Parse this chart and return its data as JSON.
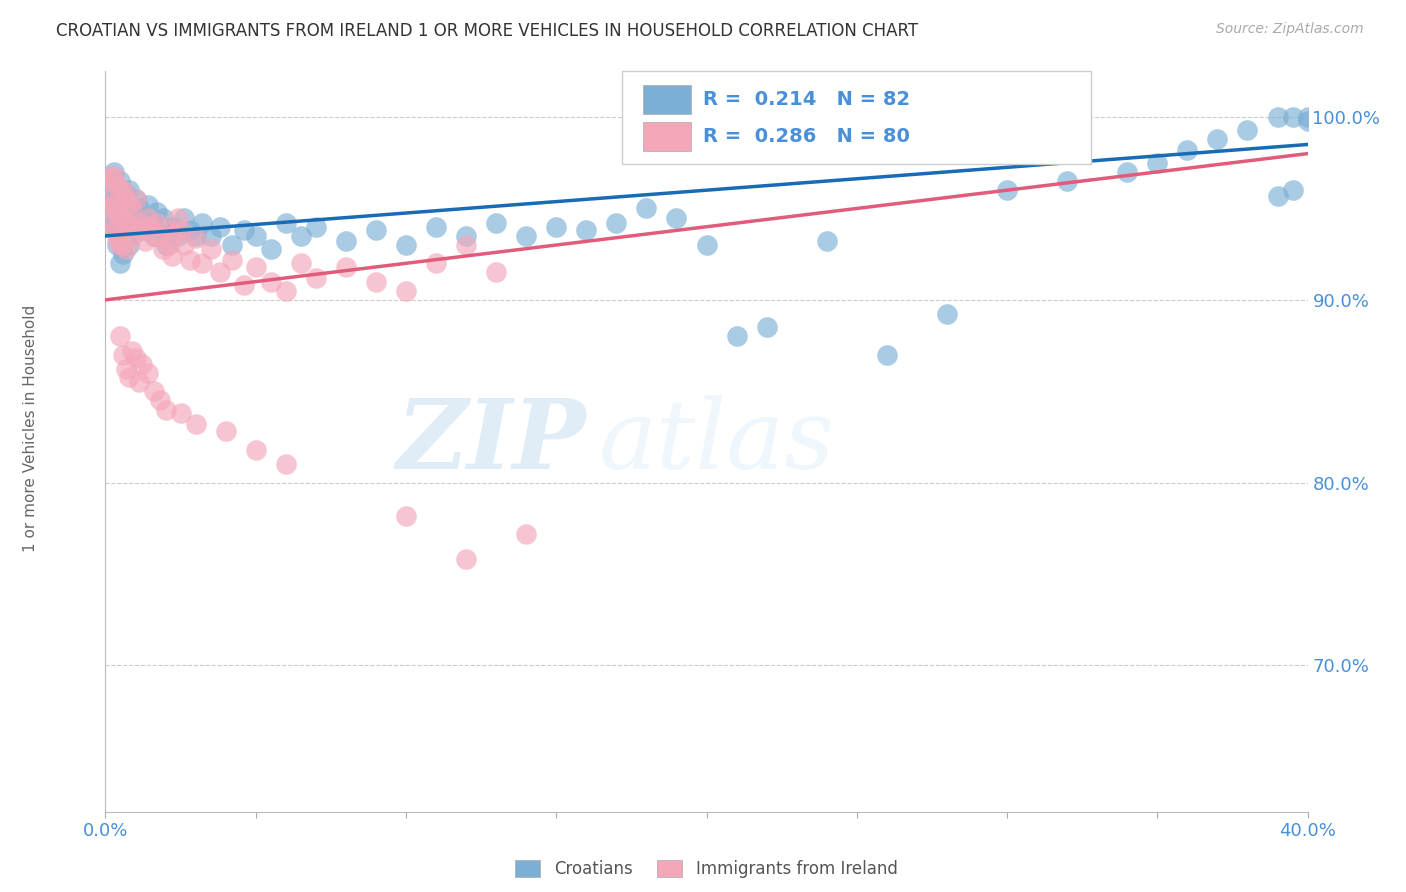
{
  "title": "CROATIAN VS IMMIGRANTS FROM IRELAND 1 OR MORE VEHICLES IN HOUSEHOLD CORRELATION CHART",
  "source": "Source: ZipAtlas.com",
  "ylabel": "1 or more Vehicles in Household",
  "legend_blue_label": "Croatians",
  "legend_pink_label": "Immigrants from Ireland",
  "R_blue": 0.214,
  "N_blue": 82,
  "R_pink": 0.286,
  "N_pink": 80,
  "blue_color": "#7bafd4",
  "pink_color": "#f4a7b9",
  "trendline_blue": "#1a6bb5",
  "trendline_pink": "#e05c7a",
  "background": "#ffffff",
  "xmin": 0.0,
  "xmax": 0.4,
  "ymin": 0.62,
  "ymax": 1.025,
  "ytick_vals": [
    0.7,
    0.8,
    0.9,
    1.0
  ],
  "ytick_labels": [
    "70.0%",
    "80.0%",
    "90.0%",
    "100.0%"
  ],
  "blue_x": [
    0.001,
    0.001,
    0.002,
    0.002,
    0.003,
    0.003,
    0.003,
    0.004,
    0.004,
    0.004,
    0.005,
    0.005,
    0.005,
    0.005,
    0.006,
    0.006,
    0.006,
    0.007,
    0.007,
    0.008,
    0.008,
    0.008,
    0.009,
    0.009,
    0.01,
    0.01,
    0.011,
    0.012,
    0.013,
    0.014,
    0.015,
    0.016,
    0.017,
    0.018,
    0.019,
    0.02,
    0.022,
    0.024,
    0.026,
    0.028,
    0.03,
    0.032,
    0.035,
    0.038,
    0.042,
    0.046,
    0.05,
    0.055,
    0.06,
    0.065,
    0.07,
    0.08,
    0.09,
    0.1,
    0.11,
    0.12,
    0.13,
    0.14,
    0.15,
    0.16,
    0.17,
    0.18,
    0.19,
    0.2,
    0.21,
    0.22,
    0.24,
    0.26,
    0.28,
    0.3,
    0.32,
    0.34,
    0.35,
    0.36,
    0.37,
    0.38,
    0.39,
    0.395,
    0.395,
    0.4,
    0.39,
    0.4
  ],
  "blue_y": [
    0.955,
    0.94,
    0.965,
    0.95,
    0.97,
    0.955,
    0.94,
    0.96,
    0.945,
    0.93,
    0.965,
    0.95,
    0.935,
    0.92,
    0.955,
    0.94,
    0.925,
    0.958,
    0.942,
    0.96,
    0.945,
    0.93,
    0.95,
    0.935,
    0.955,
    0.94,
    0.95,
    0.945,
    0.938,
    0.952,
    0.942,
    0.935,
    0.948,
    0.938,
    0.945,
    0.93,
    0.94,
    0.935,
    0.945,
    0.938,
    0.935,
    0.942,
    0.935,
    0.94,
    0.93,
    0.938,
    0.935,
    0.928,
    0.942,
    0.935,
    0.94,
    0.932,
    0.938,
    0.93,
    0.94,
    0.935,
    0.942,
    0.935,
    0.94,
    0.938,
    0.942,
    0.95,
    0.945,
    0.93,
    0.88,
    0.885,
    0.932,
    0.87,
    0.892,
    0.96,
    0.965,
    0.97,
    0.975,
    0.982,
    0.988,
    0.993,
    1.0,
    1.0,
    0.96,
    1.0,
    0.957,
    0.998
  ],
  "pink_x": [
    0.001,
    0.001,
    0.002,
    0.002,
    0.002,
    0.003,
    0.003,
    0.003,
    0.004,
    0.004,
    0.004,
    0.005,
    0.005,
    0.005,
    0.006,
    0.006,
    0.006,
    0.007,
    0.007,
    0.007,
    0.008,
    0.008,
    0.009,
    0.009,
    0.01,
    0.01,
    0.011,
    0.012,
    0.013,
    0.014,
    0.015,
    0.016,
    0.017,
    0.018,
    0.019,
    0.02,
    0.021,
    0.022,
    0.023,
    0.024,
    0.025,
    0.026,
    0.028,
    0.03,
    0.032,
    0.035,
    0.038,
    0.042,
    0.046,
    0.05,
    0.055,
    0.06,
    0.065,
    0.07,
    0.08,
    0.09,
    0.1,
    0.11,
    0.12,
    0.13,
    0.005,
    0.006,
    0.007,
    0.008,
    0.009,
    0.01,
    0.011,
    0.012,
    0.014,
    0.016,
    0.018,
    0.02,
    0.025,
    0.03,
    0.04,
    0.05,
    0.06,
    0.1,
    0.12,
    0.14
  ],
  "pink_y": [
    0.965,
    0.95,
    0.968,
    0.955,
    0.94,
    0.968,
    0.952,
    0.938,
    0.963,
    0.948,
    0.933,
    0.96,
    0.945,
    0.93,
    0.96,
    0.945,
    0.93,
    0.955,
    0.942,
    0.928,
    0.952,
    0.938,
    0.95,
    0.935,
    0.955,
    0.94,
    0.942,
    0.938,
    0.932,
    0.945,
    0.94,
    0.935,
    0.942,
    0.935,
    0.928,
    0.938,
    0.93,
    0.924,
    0.936,
    0.945,
    0.938,
    0.93,
    0.922,
    0.934,
    0.92,
    0.928,
    0.915,
    0.922,
    0.908,
    0.918,
    0.91,
    0.905,
    0.92,
    0.912,
    0.918,
    0.91,
    0.905,
    0.92,
    0.93,
    0.915,
    0.88,
    0.87,
    0.862,
    0.858,
    0.872,
    0.868,
    0.855,
    0.865,
    0.86,
    0.85,
    0.845,
    0.84,
    0.838,
    0.832,
    0.828,
    0.818,
    0.81,
    0.782,
    0.758,
    0.772
  ]
}
